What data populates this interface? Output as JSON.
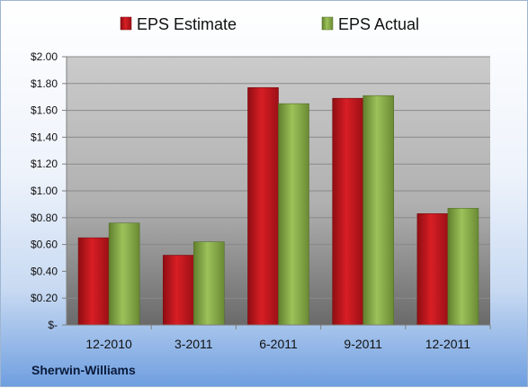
{
  "chart_data": {
    "type": "bar",
    "categories": [
      "12-2010",
      "3-2011",
      "6-2011",
      "9-2011",
      "12-2011"
    ],
    "series": [
      {
        "name": "EPS Estimate",
        "values": [
          0.65,
          0.52,
          1.77,
          1.69,
          0.83
        ],
        "color": "#c8161d"
      },
      {
        "name": "EPS Actual",
        "values": [
          0.76,
          0.62,
          1.65,
          1.71,
          0.87
        ],
        "color": "#8db34a"
      }
    ],
    "yticks": [
      "$-",
      "$0.20",
      "$0.40",
      "$0.60",
      "$0.80",
      "$1.00",
      "$1.20",
      "$1.40",
      "$1.60",
      "$1.80",
      "$2.00"
    ],
    "ylim": [
      0,
      2.0
    ],
    "ystep": 0.2,
    "grid": true,
    "legend_position": "top"
  },
  "company": "Sherwin-Williams",
  "colors": {
    "plot_top": "#c9c9c9",
    "plot_bottom": "#6a6a6a"
  }
}
